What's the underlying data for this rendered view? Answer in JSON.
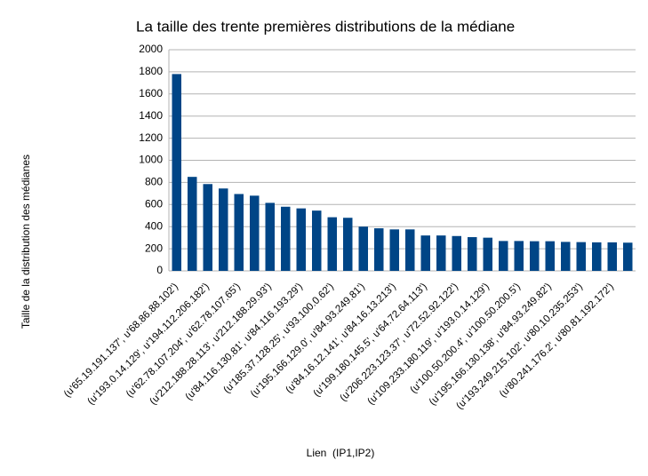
{
  "chart_data": {
    "type": "bar",
    "title": "La taille des trente premières distributions de la médiane",
    "x_label": "Lien  (IP1,IP2)",
    "y_label": "Taille de la distribution des médianes",
    "categories": [
      "(u'65.19.191.137', u'68.86.88.102')",
      null,
      "(u'193.0.14.129', u'194.112.206.182')",
      null,
      "(u'62.78.107.204', u'62.78.107.65')",
      null,
      "(u'212.188.28.113', u'212.188.29.93')",
      null,
      "(u'84.116.130.81', u'84.116.193.29')",
      null,
      "(u'185.37.128.25', u'93.100.0.62')",
      null,
      "(u'195.166.129.0', u'84.93.249.81')",
      null,
      "(u'84.16.12.141', u'84.16.13.213')",
      null,
      "(u'199.180.145.5', u'64.72.64.113')",
      null,
      "(u'206.223.123.37', u'72.52.92.122')",
      null,
      "(u'109.233.180.119', u'193.0.14.129')",
      null,
      "(u'100.50.200.4', u'100.50.200.5')",
      null,
      "(u'195.166.130.138', u'84.93.249.82')",
      null,
      "(u'193.249.215.102', u'80.10.235.253')",
      null,
      "(u'80.241.176.2', u'80.81.192.172')",
      null
    ],
    "values": [
      1780,
      850,
      785,
      745,
      695,
      680,
      615,
      580,
      565,
      545,
      485,
      480,
      400,
      385,
      375,
      375,
      320,
      320,
      315,
      305,
      300,
      270,
      270,
      268,
      268,
      262,
      260,
      258,
      258,
      255
    ],
    "color": "#004586",
    "ylim": [
      0,
      2000
    ],
    "yticks": [
      0,
      200,
      400,
      600,
      800,
      1000,
      1200,
      1400,
      1600,
      1800,
      2000
    ],
    "grid": true
  }
}
